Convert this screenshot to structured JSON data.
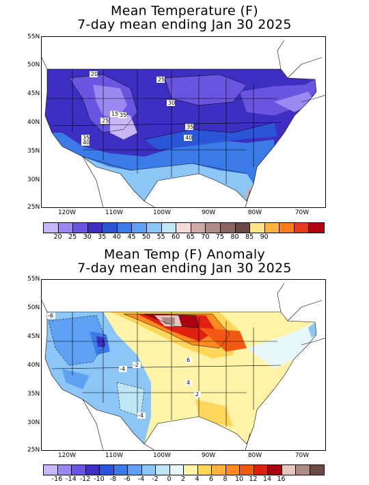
{
  "top": {
    "title1": "Mean Temperature (F)",
    "title2": "7-day mean ending Jan 30 2025",
    "colorbar": {
      "colors": [
        "#c8b7f7",
        "#9b88f0",
        "#6a55e0",
        "#3c2fc2",
        "#2b56d8",
        "#3b7be8",
        "#5ea1f2",
        "#8cc6f7",
        "#bfe6f5",
        "#f2dcd7",
        "#cfa9a5",
        "#b08a84",
        "#8a6460",
        "#6b4a45",
        "#ffe38a",
        "#ffb23c",
        "#ff7a1a",
        "#e83a18",
        "#b20010"
      ],
      "labels": [
        "20",
        "25",
        "30",
        "35",
        "40",
        "45",
        "50",
        "55",
        "60",
        "65",
        "70",
        "75",
        "80",
        "85",
        "90"
      ]
    },
    "contour_labels": [
      "20",
      "25",
      "30",
      "15",
      "25",
      "35",
      "40",
      "35",
      "40",
      "35"
    ]
  },
  "bottom": {
    "title1": "Mean Temp (F) Anomaly",
    "title2": "7-day mean ending Jan 30 2025",
    "colorbar": {
      "colors": [
        "#c8b7f7",
        "#9b88f0",
        "#6a55e0",
        "#3c2fc2",
        "#2b56d8",
        "#3b7be8",
        "#5ea1f2",
        "#8cc6f7",
        "#bfe6f5",
        "#e8f8f8",
        "#fff3a8",
        "#ffd65a",
        "#ffb23c",
        "#ff8a1f",
        "#f25a14",
        "#e02010",
        "#a80010",
        "#e8c6c0",
        "#b08a84",
        "#6b4a45"
      ],
      "labels": [
        "-16",
        "-14",
        "-12",
        "-10",
        "-8",
        "-6",
        "-4",
        "-2",
        "0",
        "2",
        "4",
        "6",
        "8",
        "10",
        "12",
        "14",
        "16"
      ]
    },
    "contour_labels": [
      "-6",
      "-4",
      "-2",
      "-4",
      "6",
      "4",
      "2"
    ]
  },
  "axes": {
    "lat_labels": [
      "55N",
      "50N",
      "45N",
      "40N",
      "35N",
      "30N",
      "25N"
    ],
    "lon_labels": [
      "120W",
      "110W",
      "100W",
      "90W",
      "80W",
      "70W"
    ]
  }
}
